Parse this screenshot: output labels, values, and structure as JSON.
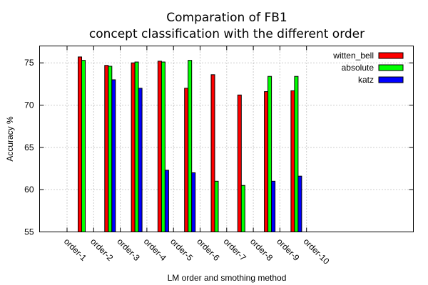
{
  "chart_data": {
    "type": "bar",
    "title": [
      "Comparation of FB1",
      "concept classification with the different order"
    ],
    "xlabel": "LM order and smothing method",
    "ylabel": "Accuracy %",
    "ylim": [
      55,
      77
    ],
    "yticks": [
      55,
      60,
      65,
      70,
      75
    ],
    "categories": [
      "order-1",
      "order-2",
      "order-3",
      "order-4",
      "order-5",
      "order-6",
      "order-7",
      "order-8",
      "order-9",
      "order-10"
    ],
    "grid": true,
    "legend_position": "top-right",
    "series": [
      {
        "name": "witten_bell",
        "color": "#ff0000",
        "values": [
          75.7,
          74.7,
          75.0,
          75.2,
          72.0,
          73.6,
          71.2,
          71.6,
          71.7,
          null
        ]
      },
      {
        "name": "absolute",
        "color": "#00ff00",
        "values": [
          75.3,
          74.6,
          75.1,
          75.1,
          75.3,
          61.0,
          60.5,
          73.4,
          73.4,
          null
        ]
      },
      {
        "name": "katz",
        "color": "#0000ff",
        "values": [
          null,
          73.0,
          72.0,
          62.3,
          62.0,
          null,
          null,
          61.0,
          61.6,
          null
        ]
      }
    ]
  }
}
